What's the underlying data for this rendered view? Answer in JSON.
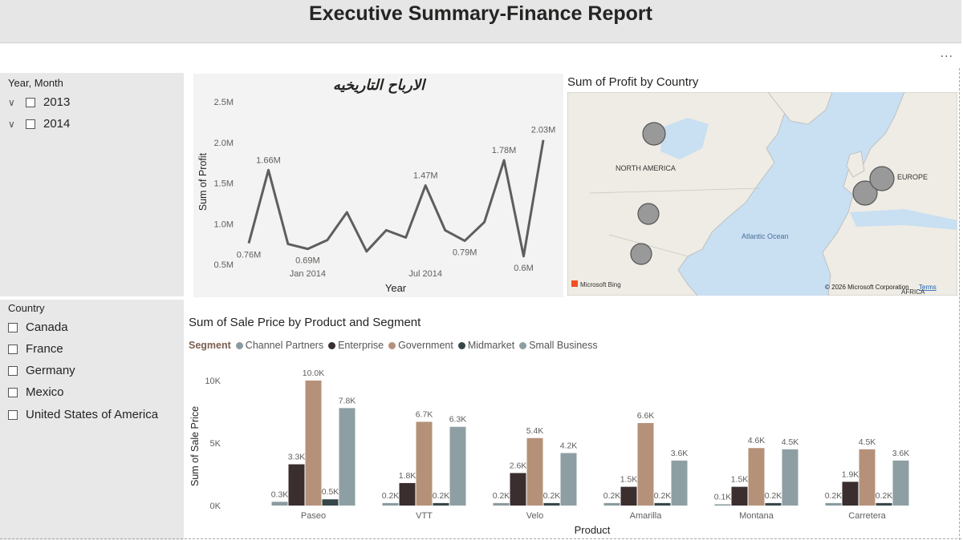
{
  "header": {
    "title": "Executive Summary-Finance Report"
  },
  "toolbar": {
    "more_label": "..."
  },
  "slicers": {
    "year_month": {
      "title": "Year, Month",
      "items": [
        "2013",
        "2014"
      ]
    },
    "country": {
      "title": "Country",
      "items": [
        "Canada",
        "France",
        "Germany",
        "Mexico",
        "United States of America"
      ]
    }
  },
  "map": {
    "title": "Sum of Profit by Country",
    "labels": {
      "north_america": "NORTH AMERICA",
      "europe": "EUROPE",
      "atlantic": "Atlantic Ocean",
      "africa": "AFRICA"
    },
    "attribution": "© 2026 Microsoft Corporation",
    "terms": "Terms",
    "bing": "Microsoft Bing",
    "bubble_color": "#999999"
  },
  "chart_data": [
    {
      "type": "line",
      "title": "الارباح التاريخيه",
      "xlabel": "Year",
      "ylabel": "Sum of Profit",
      "ylim": [
        0.5,
        2.5
      ],
      "y_unit": "M",
      "y_ticks": [
        "0.5M",
        "1.0M",
        "1.5M",
        "2.0M",
        "2.5M"
      ],
      "x_ticks": [
        {
          "index": 3,
          "label": "Jan 2014"
        },
        {
          "index": 9,
          "label": "Jul 2014"
        }
      ],
      "series": [
        {
          "values": [
            0.76,
            1.66,
            0.75,
            0.69,
            0.8,
            1.14,
            0.66,
            0.92,
            0.83,
            1.47,
            0.92,
            0.79,
            1.02,
            1.78,
            0.6,
            2.03
          ]
        }
      ],
      "data_labels": [
        {
          "index": 0,
          "text": "0.76M"
        },
        {
          "index": 1,
          "text": "1.66M"
        },
        {
          "index": 3,
          "text": "0.69M"
        },
        {
          "index": 9,
          "text": "1.47M"
        },
        {
          "index": 11,
          "text": "0.79M"
        },
        {
          "index": 13,
          "text": "1.78M"
        },
        {
          "index": 14,
          "text": "0.6M"
        },
        {
          "index": 15,
          "text": "2.03M"
        }
      ],
      "color": "#605e5c"
    },
    {
      "type": "bar",
      "title": "Sum of Sale Price by Product and Segment",
      "xlabel": "Product",
      "ylabel": "Sum of Sale Price",
      "legend_title": "Segment",
      "ylim": [
        0,
        10000
      ],
      "y_ticks": [
        "0K",
        "5K",
        "10K"
      ],
      "categories": [
        "Paseo",
        "VTT",
        "Velo",
        "Amarilla",
        "Montana",
        "Carretera"
      ],
      "series": [
        {
          "name": "Channel Partners",
          "color": "#8a9ba0",
          "values": [
            300,
            200,
            200,
            200,
            100,
            200
          ],
          "labels": [
            "0.3K",
            "0.2K",
            "0.2K",
            "0.2K",
            "0.1K",
            "0.2K"
          ]
        },
        {
          "name": "Enterprise",
          "color": "#3a2e2f",
          "values": [
            3300,
            1800,
            2600,
            1500,
            1500,
            1900
          ],
          "labels": [
            "3.3K",
            "1.8K",
            "2.6K",
            "1.5K",
            "1.5K",
            "1.9K"
          ]
        },
        {
          "name": "Government",
          "color": "#b5917a",
          "values": [
            10000,
            6700,
            5400,
            6600,
            4600,
            4500
          ],
          "labels": [
            "10.0K",
            "6.7K",
            "5.4K",
            "6.6K",
            "4.6K",
            "4.5K"
          ]
        },
        {
          "name": "Midmarket",
          "color": "#374749",
          "values": [
            500,
            200,
            200,
            200,
            200,
            200
          ],
          "labels": [
            "0.5K",
            "0.2K",
            "0.2K",
            "0.2K",
            "0.2K",
            "0.2K"
          ]
        },
        {
          "name": "Small Business",
          "color": "#8d9fa2",
          "values": [
            7800,
            6300,
            4200,
            3600,
            4500,
            3600
          ],
          "labels": [
            "7.8K",
            "6.3K",
            "4.2K",
            "3.6K",
            "4.5K",
            "3.6K"
          ]
        }
      ]
    }
  ]
}
